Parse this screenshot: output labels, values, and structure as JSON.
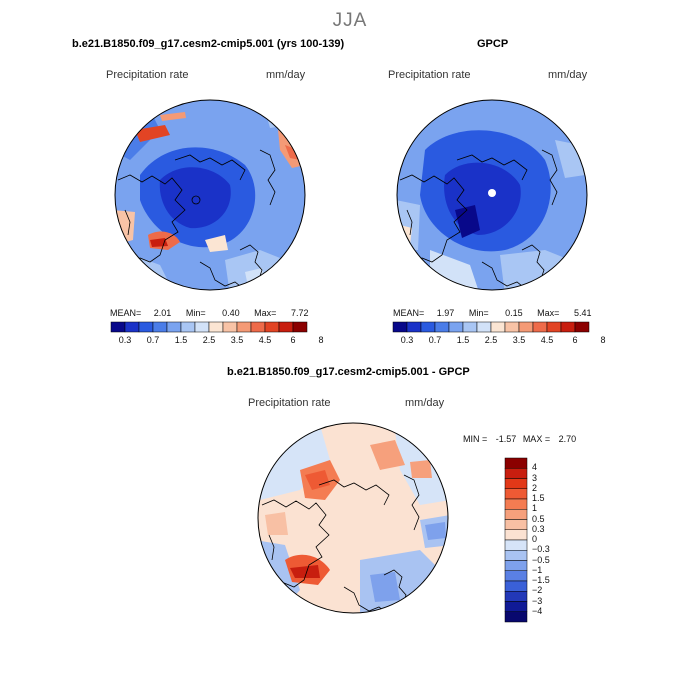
{
  "season": "JJA",
  "panels": [
    {
      "title": "b.e21.B1850.f09_g17.cesm2-cmip5.001 (yrs 100-139)",
      "subtitle_left": "Precipitation rate",
      "subtitle_right": "mm/day",
      "stats": {
        "mean_label": "MEAN=",
        "mean": "2.01",
        "min_label": "Min=",
        "min": "0.40",
        "max_label": "Max=",
        "max": "7.72"
      }
    },
    {
      "title": "GPCP",
      "subtitle_left": "Precipitation rate",
      "subtitle_right": "mm/day",
      "stats": {
        "mean_label": "MEAN=",
        "mean": "1.97",
        "min_label": "Min=",
        "min": "0.15",
        "max_label": "Max=",
        "max": "5.41"
      }
    },
    {
      "title": "b.e21.B1850.f09_g17.cesm2-cmip5.001 - GPCP",
      "subtitle_left": "Precipitation rate",
      "subtitle_right": "mm/day",
      "stats": {
        "min_label": "MIN =",
        "min": "-1.57",
        "max_label": "MAX =",
        "max": "2.70"
      }
    }
  ],
  "colorbar_top": {
    "labels": [
      "0.3",
      "0.7",
      "1.5",
      "2.5",
      "3.5",
      "4.5",
      "6",
      "8"
    ],
    "colors": [
      "#08088a",
      "#1a32c8",
      "#2a5ae0",
      "#4b7de8",
      "#7aa3ef",
      "#a9c6f4",
      "#d2e2f8",
      "#fbe5d3",
      "#f8c3a6",
      "#f49a76",
      "#ee6b4a",
      "#e24424",
      "#c81e0f",
      "#8b0000"
    ]
  },
  "colorbar_diff": {
    "labels": [
      "4",
      "3",
      "2",
      "1.5",
      "1",
      "0.5",
      "0.3",
      "0",
      "−0.3",
      "−0.5",
      "−1",
      "−1.5",
      "−2",
      "−3",
      "−4"
    ],
    "colors": [
      "#8b0000",
      "#c81e0f",
      "#e23818",
      "#ee5a34",
      "#f47c52",
      "#f6a07c",
      "#f8c0a4",
      "#fbe2d2",
      "#d6e4f8",
      "#a9c3f2",
      "#7ea1ec",
      "#5a80e4",
      "#3a60d8",
      "#2238b8",
      "#101a96",
      "#08086e"
    ]
  }
}
